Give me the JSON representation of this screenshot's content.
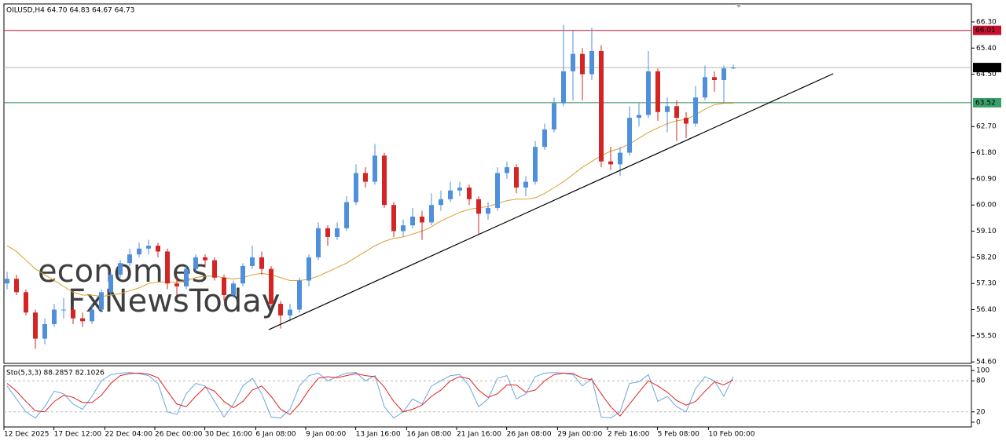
{
  "chart_data": [
    {
      "type": "candlestick",
      "title": "OILUSD,H4 64.70 64.83 64.67 64.73",
      "watermarks": [
        {
          "text": "economies",
          "color": "#f2b48a"
        },
        {
          "text": "FxNewsToday",
          "color": "#c8c8c8"
        }
      ],
      "up_color": "#4f8fdb",
      "down_color": "#d42424",
      "candles": [
        [
          57.3,
          57.7,
          57.1,
          57.46
        ],
        [
          57.46,
          57.6,
          56.9,
          57.0
        ],
        [
          57.0,
          57.1,
          56.2,
          56.3
        ],
        [
          56.3,
          56.4,
          55.05,
          55.4
        ],
        [
          55.4,
          56.1,
          55.2,
          55.9
        ],
        [
          55.9,
          56.6,
          55.8,
          56.4
        ],
        [
          56.4,
          56.8,
          56.1,
          56.4
        ],
        [
          56.4,
          56.5,
          55.9,
          56.1
        ],
        [
          56.1,
          56.3,
          55.8,
          56.0
        ],
        [
          56.0,
          56.6,
          55.9,
          56.4
        ],
        [
          56.4,
          57.1,
          56.3,
          57.0
        ],
        [
          57.0,
          57.7,
          56.9,
          57.6
        ],
        [
          57.6,
          58.1,
          57.5,
          58.0
        ],
        [
          58.0,
          58.5,
          57.9,
          58.3
        ],
        [
          58.3,
          58.7,
          58.2,
          58.5
        ],
        [
          58.5,
          58.8,
          58.3,
          58.6
        ],
        [
          58.6,
          58.7,
          58.2,
          58.4
        ],
        [
          58.4,
          58.5,
          57.1,
          57.3
        ],
        [
          57.3,
          57.5,
          56.9,
          57.2
        ],
        [
          57.2,
          57.9,
          57.1,
          57.8
        ],
        [
          57.8,
          58.3,
          57.7,
          58.2
        ],
        [
          58.2,
          58.3,
          57.9,
          58.1
        ],
        [
          58.1,
          58.2,
          57.4,
          57.5
        ],
        [
          57.5,
          57.6,
          56.7,
          56.9
        ],
        [
          56.9,
          57.4,
          56.8,
          57.3
        ],
        [
          57.3,
          58.0,
          57.2,
          57.9
        ],
        [
          57.9,
          58.6,
          57.8,
          58.2
        ],
        [
          58.2,
          58.4,
          57.6,
          57.8
        ],
        [
          57.8,
          57.9,
          56.5,
          56.6
        ],
        [
          56.6,
          56.7,
          55.75,
          56.2
        ],
        [
          56.2,
          56.6,
          56.0,
          56.4
        ],
        [
          56.4,
          57.5,
          56.3,
          57.4
        ],
        [
          57.4,
          58.3,
          57.2,
          58.2
        ],
        [
          58.2,
          59.4,
          58.1,
          59.2
        ],
        [
          59.2,
          59.3,
          58.6,
          58.9
        ],
        [
          58.9,
          59.4,
          58.8,
          59.2
        ],
        [
          59.2,
          60.3,
          59.1,
          60.1
        ],
        [
          60.1,
          61.4,
          60.0,
          61.1
        ],
        [
          61.1,
          61.3,
          60.6,
          60.8
        ],
        [
          60.8,
          62.1,
          60.7,
          61.7
        ],
        [
          61.7,
          61.8,
          59.9,
          60.0
        ],
        [
          60.0,
          60.1,
          58.9,
          59.1
        ],
        [
          59.1,
          59.5,
          58.9,
          59.3
        ],
        [
          59.3,
          59.9,
          59.2,
          59.6
        ],
        [
          59.6,
          59.8,
          58.8,
          59.4
        ],
        [
          59.4,
          60.4,
          59.3,
          60.0
        ],
        [
          60.0,
          60.5,
          59.8,
          60.2
        ],
        [
          60.2,
          60.8,
          60.1,
          60.5
        ],
        [
          60.5,
          60.8,
          60.3,
          60.6
        ],
        [
          60.6,
          60.7,
          60.0,
          60.2
        ],
        [
          60.2,
          60.3,
          59.0,
          59.7
        ],
        [
          59.7,
          60.1,
          59.5,
          59.9
        ],
        [
          59.9,
          61.3,
          59.8,
          61.1
        ],
        [
          61.1,
          61.5,
          60.9,
          61.3
        ],
        [
          61.3,
          61.4,
          60.4,
          60.6
        ],
        [
          60.6,
          61.0,
          60.3,
          60.8
        ],
        [
          60.8,
          62.2,
          60.7,
          62.0
        ],
        [
          62.0,
          62.8,
          61.9,
          62.6
        ],
        [
          62.6,
          63.7,
          62.5,
          63.5
        ],
        [
          63.5,
          66.2,
          63.4,
          64.6
        ],
        [
          64.6,
          66.0,
          63.6,
          65.2
        ],
        [
          65.2,
          65.4,
          63.6,
          64.5
        ],
        [
          64.5,
          66.1,
          64.3,
          65.3
        ],
        [
          65.3,
          65.5,
          61.3,
          61.5
        ],
        [
          61.5,
          62.0,
          61.2,
          61.4
        ],
        [
          61.4,
          62.0,
          61.0,
          61.8
        ],
        [
          61.8,
          63.4,
          61.7,
          63.0
        ],
        [
          63.0,
          63.5,
          62.7,
          63.1
        ],
        [
          63.1,
          65.3,
          63.0,
          64.6
        ],
        [
          64.6,
          64.7,
          62.9,
          63.2
        ],
        [
          63.2,
          63.7,
          62.5,
          63.4
        ],
        [
          63.4,
          63.6,
          62.2,
          63.0
        ],
        [
          63.0,
          63.2,
          62.3,
          62.8
        ],
        [
          62.8,
          64.1,
          62.7,
          63.7
        ],
        [
          63.7,
          64.8,
          63.6,
          64.4
        ],
        [
          64.4,
          64.6,
          63.9,
          64.3
        ],
        [
          64.3,
          64.8,
          63.5,
          64.7
        ],
        [
          64.7,
          64.83,
          64.67,
          64.73
        ]
      ],
      "lines": [
        {
          "color": "#d9a02e",
          "values": [
            58.6,
            58.4,
            58.1,
            57.8,
            57.6,
            57.4,
            57.2,
            57.0,
            56.9,
            56.9,
            56.85,
            56.9,
            56.95,
            57.05,
            57.15,
            57.3,
            57.35,
            57.35,
            57.35,
            57.4,
            57.5,
            57.55,
            57.55,
            57.5,
            57.45,
            57.5,
            57.6,
            57.65,
            57.6,
            57.5,
            57.4,
            57.4,
            57.45,
            57.55,
            57.7,
            57.85,
            58.0,
            58.2,
            58.4,
            58.6,
            58.75,
            58.85,
            58.9,
            59.0,
            59.1,
            59.25,
            59.45,
            59.6,
            59.75,
            59.85,
            59.9,
            59.95,
            60.05,
            60.15,
            60.2,
            60.2,
            60.25,
            60.4,
            60.6,
            60.8,
            61.05,
            61.3,
            61.5,
            61.7,
            61.85,
            61.95,
            62.1,
            62.3,
            62.5,
            62.65,
            62.8,
            62.9,
            62.95,
            63.1,
            63.3,
            63.45,
            63.5,
            63.5
          ]
        }
      ],
      "levels": [
        {
          "value": 66.01,
          "color": "#c8102e",
          "box": "#c8102e"
        },
        {
          "value": 64.73,
          "color": "#b4b4b4",
          "box": "#000000"
        },
        {
          "value": 63.52,
          "color": "#2e8b57",
          "box": "#3aa06a"
        }
      ],
      "trendline": {
        "x": [
          27.75,
          87.6
        ],
        "y": [
          55.71,
          64.52
        ],
        "color": "#000000"
      },
      "ylim": [
        54.55,
        66.92
      ],
      "yticks": [
        {
          "value": 66.3,
          "label": "66.30"
        },
        {
          "value": 65.4,
          "label": "65.40"
        },
        {
          "value": 64.5,
          "label": "64.50"
        },
        {
          "value": 62.7,
          "label": "62.70"
        },
        {
          "value": 61.8,
          "label": "61.80"
        },
        {
          "value": 60.9,
          "label": "60.90"
        },
        {
          "value": 60.0,
          "label": "60.00"
        },
        {
          "value": 59.1,
          "label": "59.10"
        },
        {
          "value": 58.2,
          "label": "58.20"
        },
        {
          "value": 57.3,
          "label": "57.30"
        },
        {
          "value": 56.4,
          "label": "56.40"
        },
        {
          "value": 55.5,
          "label": "55.50"
        },
        {
          "value": 54.6,
          "label": "54.60"
        }
      ],
      "xticks": [
        {
          "value": 0,
          "label": "12 Dec 2025"
        },
        {
          "value": 5.3,
          "label": "17 Dec 12:00"
        },
        {
          "value": 10.7,
          "label": "22 Dec 04:00"
        },
        {
          "value": 16,
          "label": "26 Dec 00:00"
        },
        {
          "value": 21.3,
          "label": "30 Dec 16:00"
        },
        {
          "value": 26.7,
          "label": "6 Jan 08:00"
        },
        {
          "value": 32,
          "label": "9 Jan 00:00"
        },
        {
          "value": 37.3,
          "label": "13 Jan 16:00"
        },
        {
          "value": 42.7,
          "label": "16 Jan 08:00"
        },
        {
          "value": 48,
          "label": "21 Jan 16:00"
        },
        {
          "value": 53.3,
          "label": "26 Jan 08:00"
        },
        {
          "value": 58.7,
          "label": "29 Jan 00:00"
        },
        {
          "value": 64,
          "label": "2 Feb 16:00"
        },
        {
          "value": 69.3,
          "label": "5 Feb 08:00"
        },
        {
          "value": 74.7,
          "label": "10 Feb 00:00"
        }
      ]
    },
    {
      "type": "line",
      "title": "Sto(5,3,3) 88.2857 82.1026",
      "series": [
        {
          "color": "#6aa6e2",
          "values": [
            70,
            45,
            20,
            8,
            30,
            60,
            55,
            35,
            25,
            50,
            80,
            92,
            95,
            96,
            94,
            90,
            75,
            20,
            15,
            55,
            75,
            70,
            40,
            10,
            35,
            70,
            85,
            55,
            10,
            8,
            25,
            70,
            90,
            95,
            80,
            88,
            95,
            96,
            80,
            90,
            30,
            8,
            20,
            45,
            35,
            70,
            80,
            90,
            92,
            70,
            30,
            45,
            85,
            90,
            45,
            55,
            88,
            95,
            96,
            95,
            92,
            70,
            85,
            10,
            8,
            20,
            75,
            78,
            92,
            40,
            50,
            30,
            20,
            65,
            88,
            80,
            50,
            88.2857
          ]
        },
        {
          "color": "#e02020",
          "values": [
            75,
            60,
            40,
            22,
            20,
            40,
            52,
            48,
            38,
            38,
            52,
            75,
            90,
            94,
            95,
            93,
            86,
            60,
            35,
            30,
            50,
            68,
            60,
            40,
            28,
            40,
            62,
            70,
            50,
            25,
            15,
            35,
            62,
            85,
            88,
            86,
            90,
            94,
            90,
            88,
            68,
            40,
            20,
            25,
            33,
            50,
            62,
            80,
            88,
            84,
            62,
            48,
            55,
            72,
            72,
            58,
            62,
            80,
            92,
            95,
            94,
            85,
            82,
            55,
            30,
            12,
            35,
            58,
            80,
            70,
            58,
            42,
            33,
            40,
            60,
            78,
            72,
            82.1026
          ]
        }
      ],
      "levels": [
        80,
        20
      ],
      "ylim": [
        -9.2,
        109.2
      ],
      "yticks": [
        100,
        80,
        20,
        0
      ]
    }
  ]
}
